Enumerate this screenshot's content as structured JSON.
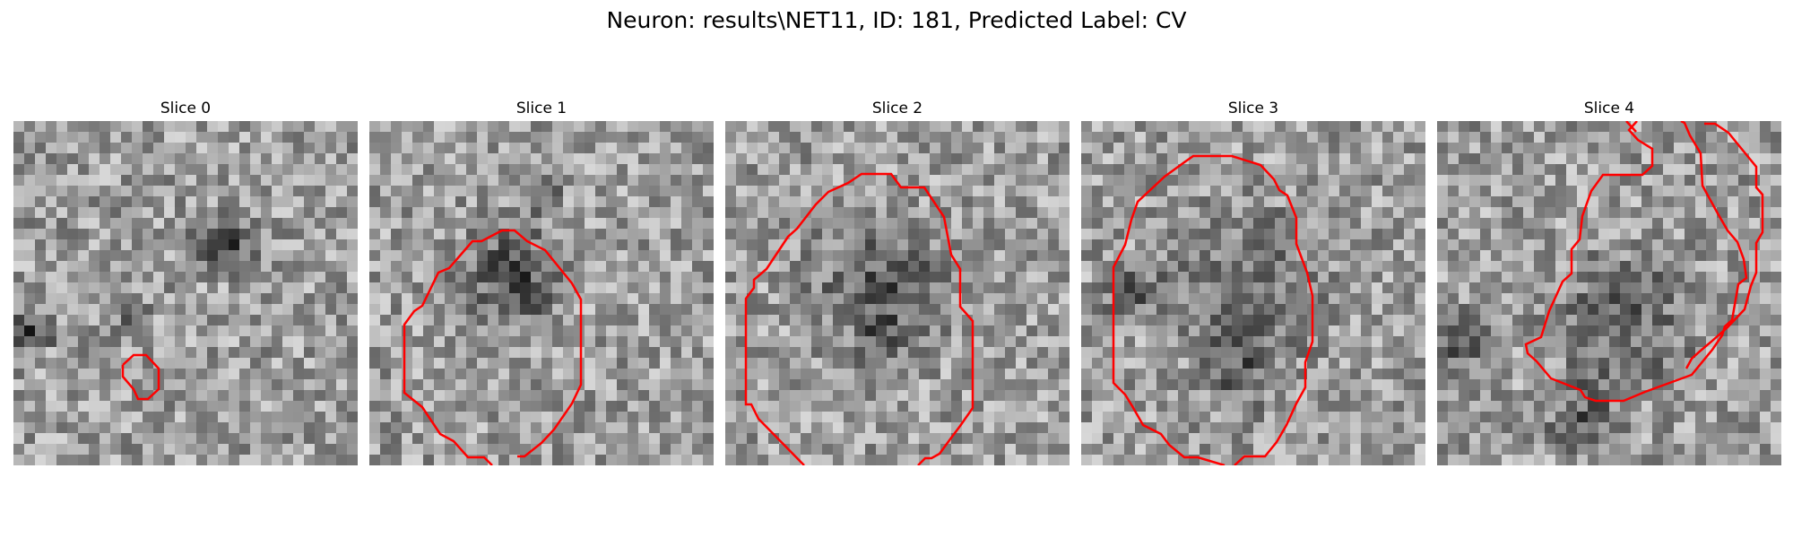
{
  "figure": {
    "title": "Neuron: results\\NET11, ID: 181, Predicted Label: CV"
  },
  "panels": [
    {
      "title": "Slice 0"
    },
    {
      "title": "Slice 1"
    },
    {
      "title": "Slice 2"
    },
    {
      "title": "Slice 3"
    },
    {
      "title": "Slice 4"
    }
  ],
  "style": {
    "contour_color": "#ff0000",
    "colormap": "grayscale"
  }
}
